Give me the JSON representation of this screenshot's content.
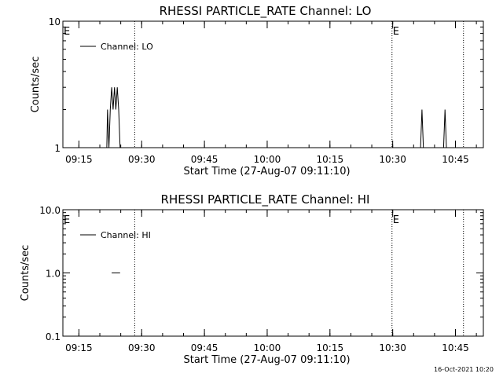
{
  "footer_timestamp": "16-Oct-2021 10:20",
  "chart_data": [
    {
      "type": "line",
      "title": "RHESSI PARTICLE_RATE Channel: LO",
      "xlabel": "Start Time (27-Aug-07 09:11:10)",
      "ylabel": "Counts/sec",
      "yscale": "log",
      "ylim": [
        1,
        10
      ],
      "xlim": [
        "09:11:10",
        "10:51:40"
      ],
      "x_ticks": [
        "09:15",
        "09:30",
        "09:45",
        "10:00",
        "10:15",
        "10:30",
        "10:45"
      ],
      "y_ticks": [
        "1",
        "10"
      ],
      "legend": {
        "position": "top-left",
        "entries": [
          "Channel: LO"
        ]
      },
      "event_markers": [
        {
          "time": "09:11:10",
          "label": "E"
        },
        {
          "time": "09:28:20",
          "label": ""
        },
        {
          "time": "10:29:50",
          "label": "E"
        },
        {
          "time": "10:46:55",
          "label": ""
        }
      ],
      "series": [
        {
          "name": "Channel: LO",
          "points": [
            [
              "09:21:40",
              1
            ],
            [
              "09:21:50",
              2
            ],
            [
              "09:22:10",
              1
            ],
            [
              "09:22:30",
              2
            ],
            [
              "09:22:50",
              3
            ],
            [
              "09:23:10",
              2
            ],
            [
              "09:23:30",
              3
            ],
            [
              "09:23:50",
              2
            ],
            [
              "09:24:10",
              3
            ],
            [
              "09:24:30",
              2
            ],
            [
              "09:24:50",
              1
            ],
            [
              "10:36:40",
              1
            ],
            [
              "10:37:00",
              2
            ],
            [
              "10:37:20",
              1
            ],
            [
              "10:42:10",
              1
            ],
            [
              "10:42:30",
              2
            ],
            [
              "10:42:50",
              1
            ]
          ]
        }
      ]
    },
    {
      "type": "line",
      "title": "RHESSI PARTICLE_RATE Channel: HI",
      "xlabel": "Start Time (27-Aug-07 09:11:10)",
      "ylabel": "Counts/sec",
      "yscale": "log",
      "ylim": [
        0.1,
        10
      ],
      "xlim": [
        "09:11:10",
        "10:51:40"
      ],
      "x_ticks": [
        "09:15",
        "09:30",
        "09:45",
        "10:00",
        "10:15",
        "10:30",
        "10:45"
      ],
      "y_ticks": [
        "0.1",
        "1.0",
        "10.0"
      ],
      "legend": {
        "position": "top-left",
        "entries": [
          "Channel: HI"
        ]
      },
      "event_markers": [
        {
          "time": "09:11:10",
          "label": "E"
        },
        {
          "time": "09:28:20",
          "label": ""
        },
        {
          "time": "10:29:50",
          "label": "E"
        },
        {
          "time": "10:46:55",
          "label": ""
        }
      ],
      "series": [
        {
          "name": "Channel: HI",
          "points": [
            [
              "09:22:50",
              1
            ],
            [
              "09:24:50",
              1
            ]
          ]
        }
      ]
    }
  ]
}
